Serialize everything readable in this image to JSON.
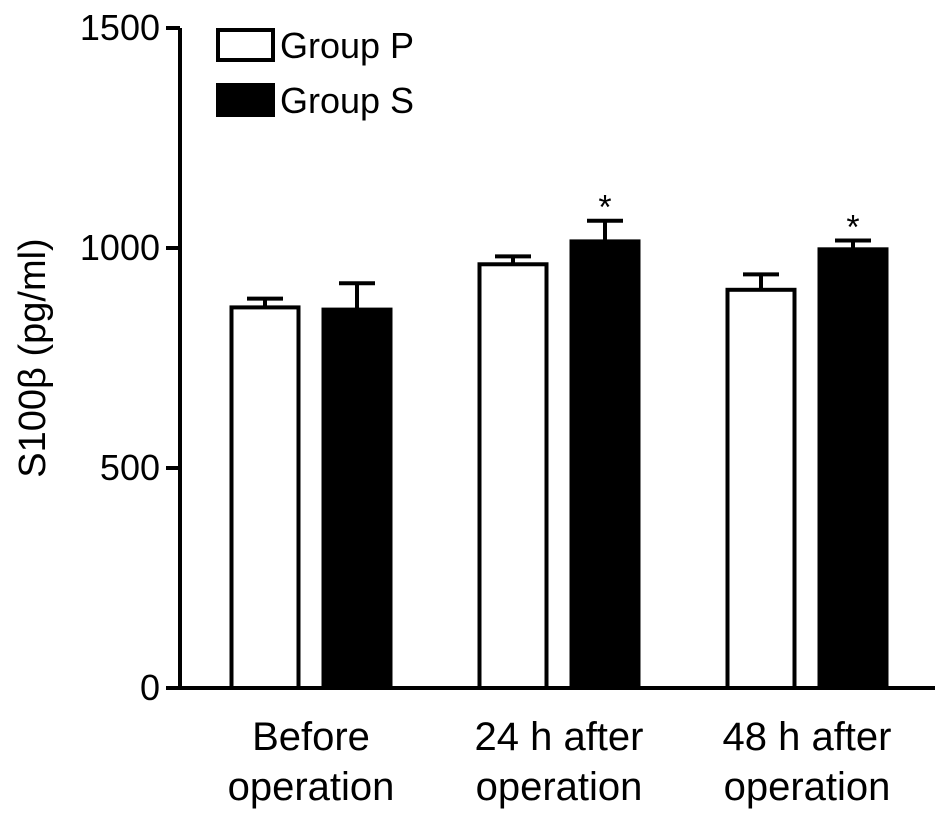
{
  "chart_data": {
    "type": "bar",
    "title": "",
    "xlabel": "",
    "ylabel": "S100β (pg/ml)",
    "ylim": [
      0,
      1500
    ],
    "yticks": [
      0,
      500,
      1000,
      1500
    ],
    "yticklabels": [
      "0",
      "500",
      "1000",
      "1500"
    ],
    "categories": [
      [
        "Before",
        "operation"
      ],
      [
        "24 h after",
        "operation"
      ],
      [
        "48 h after",
        "operation"
      ]
    ],
    "series": [
      {
        "name": "Group P",
        "values": [
          865,
          963,
          905
        ],
        "errors": [
          20,
          18,
          35
        ],
        "fill": "#ffffff",
        "significance": [
          "",
          "",
          ""
        ]
      },
      {
        "name": "Group S",
        "values": [
          860,
          1015,
          997
        ],
        "errors": [
          60,
          47,
          20
        ],
        "fill": "#000000",
        "significance": [
          "",
          "*",
          "*"
        ]
      }
    ],
    "legend_position": "top-left",
    "grid": false
  }
}
